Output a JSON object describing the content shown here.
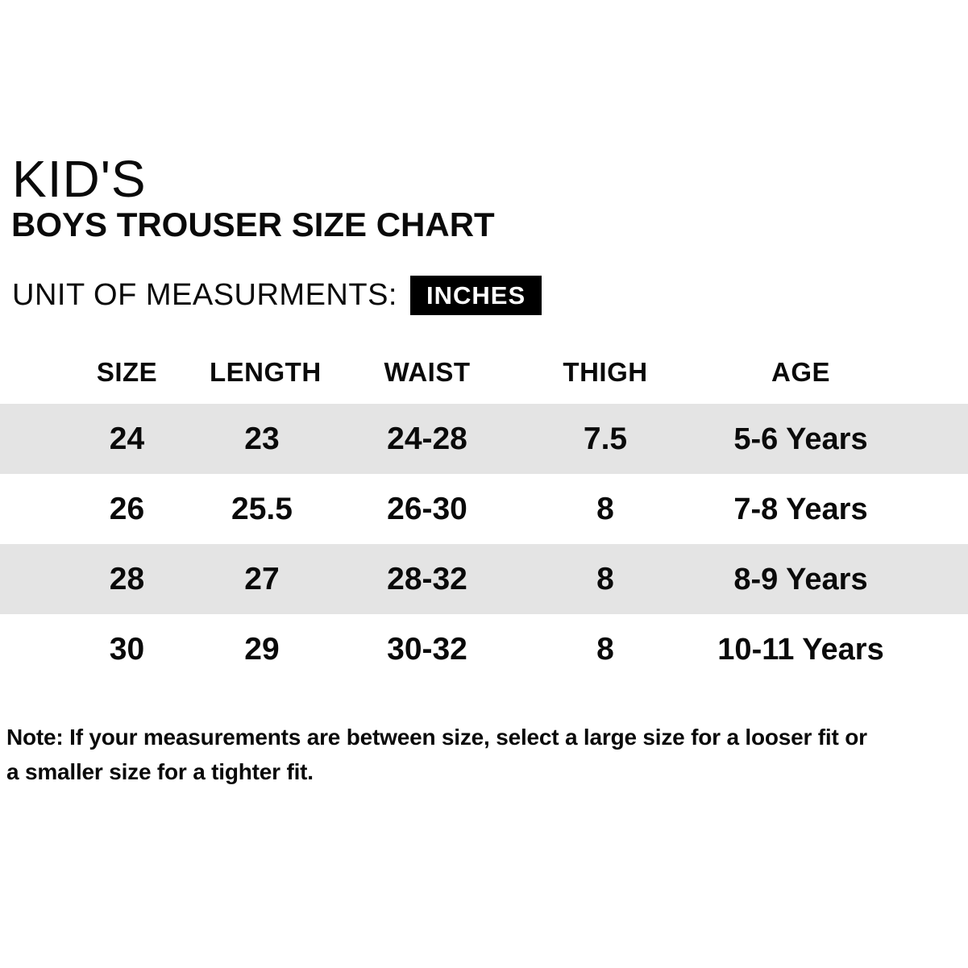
{
  "header": {
    "title": "KID'S",
    "subtitle": "BOYS TROUSER SIZE CHART",
    "unit_label": "UNIT OF MEASURMENTS:",
    "unit_value": "INCHES"
  },
  "table": {
    "columns": [
      "SIZE",
      "LENGTH",
      "WAIST",
      "THIGH",
      "AGE"
    ],
    "rows": [
      [
        "24",
        "23",
        "24-28",
        "7.5",
        "5-6 Years"
      ],
      [
        "26",
        "25.5",
        "26-30",
        "8",
        "7-8 Years"
      ],
      [
        "28",
        "27",
        "28-32",
        "8",
        "8-9 Years"
      ],
      [
        "30",
        "29",
        "30-32",
        "8",
        "10-11 Years"
      ]
    ]
  },
  "note": {
    "line1": "Note: If your measurements are between size, select a large size for a looser fit or",
    "line2": "a smaller size for a tighter fit."
  },
  "colors": {
    "row_stripe": "#e4e4e4",
    "badge_bg": "#000000",
    "badge_text": "#ffffff",
    "text": "#0a0a0a",
    "background": "#ffffff"
  }
}
